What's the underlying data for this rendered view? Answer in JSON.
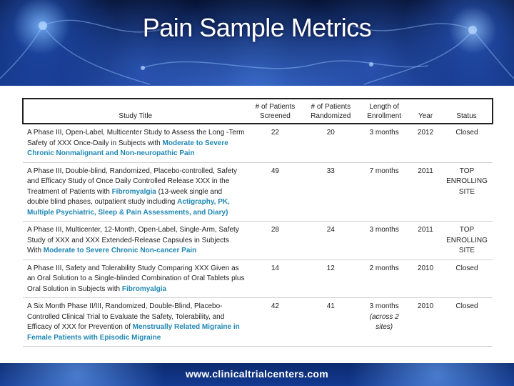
{
  "page": {
    "title": "Pain Sample Metrics",
    "footer_url": "www.clinicaltrialcenters.com"
  },
  "table": {
    "headers": {
      "study_title": "Study Title",
      "screened": "# of Patients Screened",
      "randomized": "# of Patients Randomized",
      "enrollment": "Length of Enrollment",
      "year": "Year",
      "status": "Status"
    },
    "rows": [
      {
        "title_plain": "A Phase III, Open-Label, Multicenter Study to Assess the Long -Term Safety of XXX Once-Daily in Subjects with ",
        "title_highlight": "Moderate to Severe Chronic Nonmalignant and Non-neuropathic Pain",
        "title_tail": "",
        "title_highlight2": "",
        "screened": "22",
        "randomized": "20",
        "enrollment": "3 months",
        "enrollment_note": "",
        "year": "2012",
        "status": "Closed"
      },
      {
        "title_plain": "A Phase III, Double-blind, Randomized, Placebo-controlled, Safety and Efficacy Study of Once Daily Controlled Release XXX in the Treatment of Patients with ",
        "title_highlight": "Fibromyalgia",
        "title_tail": " (13-week single and double blind phases, outpatient study including ",
        "title_highlight2": "Actigraphy, PK, Multiple Psychiatric, Sleep & Pain Assessments, and Diary)",
        "screened": "49",
        "randomized": "33",
        "enrollment": "7 months",
        "enrollment_note": "",
        "year": "2011",
        "status": "TOP ENROLLING SITE"
      },
      {
        "title_plain": "A Phase III, Multicenter, 12-Month, Open-Label, Single-Arm, Safety Study of XXX and XXX Extended-Release Capsules in Subjects With ",
        "title_highlight": "Moderate to Severe Chronic Non-cancer Pain",
        "title_tail": "",
        "title_highlight2": "",
        "screened": "28",
        "randomized": "24",
        "enrollment": "3 months",
        "enrollment_note": "",
        "year": "2011",
        "status": "TOP ENROLLING SITE"
      },
      {
        "title_plain": "A Phase III, Safety and Tolerability Study Comparing XXX Given as an Oral Solution to a Single-blinded Combination of Oral Tablets plus Oral Solution in Subjects with ",
        "title_highlight": "Fibromyalgia",
        "title_tail": "",
        "title_highlight2": "",
        "screened": "14",
        "randomized": "12",
        "enrollment": "2 months",
        "enrollment_note": "",
        "year": "2010",
        "status": "Closed"
      },
      {
        "title_plain": "A Six Month Phase II/III, Randomized, Double-Blind, Placebo-Controlled Clinical Trial to Evaluate the Safety, Tolerability, and Efficacy of XXX for Prevention of ",
        "title_highlight": "Menstrually Related Migraine in Female Patients with Episodic Migraine",
        "title_tail": "",
        "title_highlight2": "",
        "screened": "42",
        "randomized": "41",
        "enrollment": "3 months",
        "enrollment_note": "(across 2 sites)",
        "year": "2010",
        "status": "Closed"
      }
    ]
  }
}
